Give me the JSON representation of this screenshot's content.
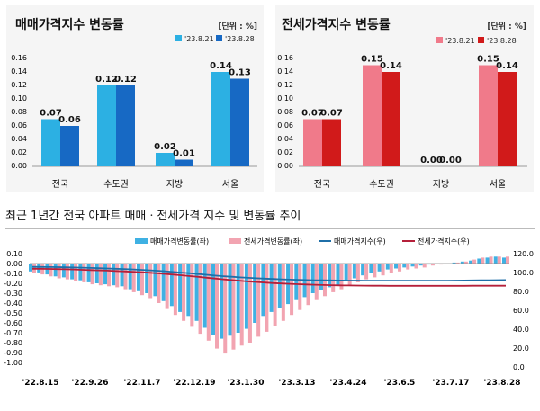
{
  "chart_data": [
    {
      "type": "bar",
      "title": "매매가격지수 변동률",
      "unit": "[단위 : %]",
      "categories": [
        "전국",
        "수도권",
        "지방",
        "서울"
      ],
      "series": [
        {
          "name": "'23.8.21",
          "values": [
            0.07,
            0.12,
            0.02,
            0.14
          ]
        },
        {
          "name": "'23.8.28",
          "values": [
            0.06,
            0.12,
            0.01,
            0.13
          ]
        }
      ],
      "data_labels": [
        [
          "0.07",
          "0.12",
          "0.02",
          "0.14"
        ],
        [
          "0.06",
          "0.12",
          "0.01",
          "0.13"
        ]
      ],
      "ylim": [
        0,
        0.16
      ],
      "yticks": [
        "0.00",
        "0.02",
        "0.04",
        "0.06",
        "0.08",
        "0.10",
        "0.12",
        "0.14",
        "0.16"
      ],
      "colors": [
        "#2cb0e3",
        "#1769c4"
      ],
      "legend": "top-right"
    },
    {
      "type": "bar",
      "title": "전세가격지수 변동률",
      "unit": "[단위 : %]",
      "categories": [
        "전국",
        "수도권",
        "지방",
        "서울"
      ],
      "series": [
        {
          "name": "'23.8.21",
          "values": [
            0.07,
            0.15,
            0.0,
            0.15
          ]
        },
        {
          "name": "'23.8.28",
          "values": [
            0.07,
            0.14,
            0.0,
            0.14
          ]
        }
      ],
      "data_labels": [
        [
          "0.07",
          "0.15",
          "0.00",
          "0.15"
        ],
        [
          "0.07",
          "0.14",
          "0.00",
          "0.14"
        ]
      ],
      "ylim": [
        0,
        0.16
      ],
      "yticks": [
        "0.00",
        "0.02",
        "0.04",
        "0.06",
        "0.08",
        "0.10",
        "0.12",
        "0.14",
        "0.16"
      ],
      "colors": [
        "#f07a8a",
        "#d11a1a"
      ],
      "legend": "top-right"
    },
    {
      "type": "bar+line",
      "title": "최근 1년간 전국 아파트 매매ㆍ전세가격 지수 및 변동률 추이",
      "x_ticks": [
        "'22.8.15",
        "'22.9.26",
        "'22.11.7",
        "'22.12.19",
        "'23.1.30",
        "'23.3.13",
        "'23.4.24",
        "'23.6.5",
        "'23.7.17",
        "'23.8.28"
      ],
      "ylim_left": [
        -1.0,
        0.1
      ],
      "yticks_left": [
        "0.10",
        "0.00",
        "-0.10",
        "-0.20",
        "-0.30",
        "-0.40",
        "-0.50",
        "-0.60",
        "-0.70",
        "-0.80",
        "-0.90",
        "-1.00"
      ],
      "ylim_right": [
        0,
        120
      ],
      "yticks_right": [
        "120.0",
        "100.0",
        "80.0",
        "60.0",
        "40.0",
        "20.0",
        "0.0"
      ],
      "legend": "top",
      "series": [
        {
          "name": "매매가격변동률(좌)",
          "kind": "bar",
          "color": "#3fb1e3",
          "values": [
            -0.08,
            -0.09,
            -0.11,
            -0.13,
            -0.14,
            -0.16,
            -0.17,
            -0.19,
            -0.2,
            -0.21,
            -0.22,
            -0.23,
            -0.26,
            -0.28,
            -0.3,
            -0.33,
            -0.38,
            -0.43,
            -0.49,
            -0.53,
            -0.58,
            -0.65,
            -0.72,
            -0.76,
            -0.73,
            -0.7,
            -0.66,
            -0.6,
            -0.53,
            -0.49,
            -0.45,
            -0.41,
            -0.37,
            -0.34,
            -0.3,
            -0.27,
            -0.24,
            -0.22,
            -0.18,
            -0.15,
            -0.12,
            -0.1,
            -0.08,
            -0.06,
            -0.05,
            -0.04,
            -0.03,
            -0.02,
            -0.01,
            0.0,
            0.0,
            0.01,
            0.02,
            0.03,
            0.05,
            0.06,
            0.07,
            0.06
          ]
        },
        {
          "name": "전세가격변동률(좌)",
          "kind": "bar",
          "color": "#f2a4b1",
          "values": [
            -0.1,
            -0.11,
            -0.13,
            -0.15,
            -0.16,
            -0.18,
            -0.19,
            -0.21,
            -0.22,
            -0.23,
            -0.24,
            -0.26,
            -0.29,
            -0.32,
            -0.35,
            -0.4,
            -0.46,
            -0.52,
            -0.58,
            -0.64,
            -0.71,
            -0.78,
            -0.86,
            -0.91,
            -0.87,
            -0.83,
            -0.8,
            -0.74,
            -0.69,
            -0.63,
            -0.58,
            -0.52,
            -0.47,
            -0.42,
            -0.37,
            -0.33,
            -0.29,
            -0.26,
            -0.22,
            -0.19,
            -0.16,
            -0.14,
            -0.12,
            -0.1,
            -0.08,
            -0.06,
            -0.05,
            -0.04,
            -0.02,
            -0.01,
            0.0,
            0.01,
            0.02,
            0.04,
            0.06,
            0.07,
            0.07,
            0.07
          ]
        },
        {
          "name": "매매가격지수(우)",
          "kind": "line",
          "color": "#1f6fa8",
          "values": [
            106.0,
            105.9,
            105.8,
            105.7,
            105.5,
            105.3,
            105.1,
            104.9,
            104.6,
            104.3,
            104.0,
            103.7,
            103.3,
            102.9,
            102.4,
            101.9,
            101.3,
            100.6,
            99.9,
            99.2,
            98.4,
            97.6,
            96.8,
            96.1,
            95.5,
            94.9,
            94.4,
            93.9,
            93.5,
            93.1,
            92.8,
            92.5,
            92.2,
            92.0,
            91.8,
            91.7,
            91.6,
            91.5,
            91.4,
            91.4,
            91.3,
            91.3,
            91.3,
            91.3,
            91.3,
            91.3,
            91.3,
            91.3,
            91.3,
            91.3,
            91.3,
            91.4,
            91.5,
            91.6,
            91.7,
            91.8,
            91.9,
            92.0
          ]
        },
        {
          "name": "전세가격지수(우)",
          "kind": "line",
          "color": "#b5203a",
          "values": [
            104.0,
            103.9,
            103.8,
            103.6,
            103.4,
            103.2,
            102.9,
            102.6,
            102.3,
            102.0,
            101.6,
            101.2,
            100.8,
            100.3,
            99.8,
            99.2,
            98.5,
            97.8,
            97.0,
            96.2,
            95.4,
            94.5,
            93.6,
            92.8,
            92.0,
            91.2,
            90.5,
            89.9,
            89.3,
            88.8,
            88.4,
            88.0,
            87.6,
            87.3,
            87.0,
            86.8,
            86.6,
            86.4,
            86.3,
            86.2,
            86.1,
            86.0,
            86.0,
            85.9,
            85.9,
            85.9,
            85.9,
            85.9,
            85.9,
            85.9,
            85.9,
            85.9,
            85.9,
            86.0,
            86.0,
            86.0,
            86.0,
            86.0
          ]
        }
      ]
    }
  ]
}
